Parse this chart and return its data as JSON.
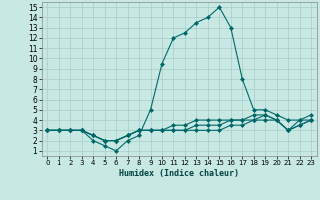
{
  "xlabel": "Humidex (Indice chaleur)",
  "xlim": [
    -0.5,
    23.5
  ],
  "ylim": [
    0.5,
    15.5
  ],
  "xticks": [
    0,
    1,
    2,
    3,
    4,
    5,
    6,
    7,
    8,
    9,
    10,
    11,
    12,
    13,
    14,
    15,
    16,
    17,
    18,
    19,
    20,
    21,
    22,
    23
  ],
  "yticks": [
    1,
    2,
    3,
    4,
    5,
    6,
    7,
    8,
    9,
    10,
    11,
    12,
    13,
    14,
    15
  ],
  "bg_color": "#c8e8e4",
  "grid_color": "#a8ccc8",
  "line_color": "#006868",
  "series": [
    {
      "x": [
        0,
        1,
        2,
        3,
        4,
        5,
        6,
        7,
        8,
        9,
        10,
        11,
        12,
        13,
        14,
        15,
        16,
        17,
        18,
        19,
        20,
        21,
        22,
        23
      ],
      "y": [
        3,
        3,
        3,
        3,
        2,
        1.5,
        1,
        2,
        2.5,
        5,
        9.5,
        12,
        12.5,
        13.5,
        14,
        15,
        13,
        8,
        5,
        5,
        4.5,
        4,
        4,
        4
      ]
    },
    {
      "x": [
        0,
        1,
        2,
        3,
        4,
        5,
        6,
        7,
        8,
        9,
        10,
        11,
        12,
        13,
        14,
        15,
        16,
        17,
        18,
        19,
        20,
        21,
        22,
        23
      ],
      "y": [
        3,
        3,
        3,
        3,
        2.5,
        2,
        2,
        2.5,
        3,
        3,
        3,
        3.5,
        3.5,
        4,
        4,
        4,
        4,
        4,
        4.5,
        4.5,
        4,
        3,
        4,
        4.5
      ]
    },
    {
      "x": [
        0,
        1,
        2,
        3,
        4,
        5,
        6,
        7,
        8,
        9,
        10,
        11,
        12,
        13,
        14,
        15,
        16,
        17,
        18,
        19,
        20,
        21,
        22,
        23
      ],
      "y": [
        3,
        3,
        3,
        3,
        2.5,
        2,
        2,
        2.5,
        3,
        3,
        3,
        3,
        3,
        3.5,
        3.5,
        3.5,
        4,
        4,
        4,
        4.5,
        4,
        3,
        3.5,
        4
      ]
    },
    {
      "x": [
        0,
        1,
        2,
        3,
        4,
        5,
        6,
        7,
        8,
        9,
        10,
        11,
        12,
        13,
        14,
        15,
        16,
        17,
        18,
        19,
        20,
        21,
        22,
        23
      ],
      "y": [
        3,
        3,
        3,
        3,
        2.5,
        2,
        2,
        2.5,
        3,
        3,
        3,
        3,
        3,
        3,
        3,
        3,
        3.5,
        3.5,
        4,
        4,
        4,
        3,
        3.5,
        4
      ]
    }
  ]
}
